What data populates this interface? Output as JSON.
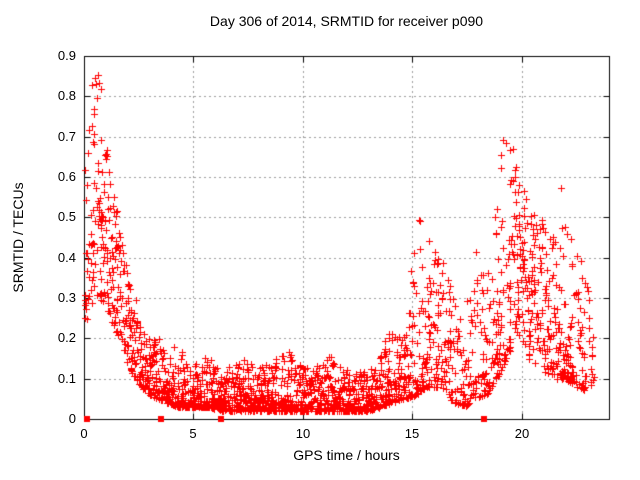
{
  "chart_data": {
    "type": "scatter",
    "title": "Day 306 of 2014, SRMTID for receiver p090",
    "xlabel": "GPS time / hours",
    "ylabel": "SRMTID / TECUs",
    "xlim": [
      0,
      24
    ],
    "ylim": [
      0,
      0.9
    ],
    "xticks": {
      "values": [
        0,
        5,
        10,
        15,
        20
      ],
      "labels": [
        "0",
        "5",
        "10",
        "15",
        "20"
      ]
    },
    "yticks": {
      "values": [
        0,
        0.1,
        0.2,
        0.3,
        0.4,
        0.5,
        0.6,
        0.7,
        0.8,
        0.9
      ],
      "labels": [
        "0",
        "0.1",
        "0.2",
        "0.3",
        "0.4",
        "0.5",
        "0.6",
        "0.7",
        "0.8",
        "0.9"
      ]
    },
    "grid": true,
    "grid_color": "#9e9e9e",
    "border_color": "#000000",
    "marker_color": "#ff0000",
    "series": [
      {
        "name": "srmtid-scatter",
        "marker": "plus",
        "seed": 306,
        "note": "dense scatter cloud described by envelope anchors read off the plot: x=hour, min/typ/max = SRMTID TECU envelope, rate = points per hour",
        "envelope": [
          {
            "x": 0.0,
            "min": 0.18,
            "typ": 0.42,
            "max": 0.65,
            "rate": 40
          },
          {
            "x": 0.3,
            "min": 0.28,
            "typ": 0.55,
            "max": 0.88,
            "rate": 95
          },
          {
            "x": 0.7,
            "min": 0.3,
            "typ": 0.55,
            "max": 0.88,
            "rate": 110
          },
          {
            "x": 1.0,
            "min": 0.28,
            "typ": 0.45,
            "max": 0.7,
            "rate": 110
          },
          {
            "x": 1.4,
            "min": 0.22,
            "typ": 0.36,
            "max": 0.55,
            "rate": 100
          },
          {
            "x": 1.8,
            "min": 0.16,
            "typ": 0.28,
            "max": 0.42,
            "rate": 100
          },
          {
            "x": 2.2,
            "min": 0.11,
            "typ": 0.2,
            "max": 0.33,
            "rate": 100
          },
          {
            "x": 2.6,
            "min": 0.08,
            "typ": 0.15,
            "max": 0.26,
            "rate": 100
          },
          {
            "x": 3.0,
            "min": 0.06,
            "typ": 0.11,
            "max": 0.2,
            "rate": 100
          },
          {
            "x": 3.4,
            "min": 0.05,
            "typ": 0.1,
            "max": 0.22,
            "rate": 110
          },
          {
            "x": 3.8,
            "min": 0.04,
            "typ": 0.08,
            "max": 0.14,
            "rate": 110
          },
          {
            "x": 4.3,
            "min": 0.03,
            "typ": 0.07,
            "max": 0.2,
            "rate": 110
          },
          {
            "x": 4.8,
            "min": 0.03,
            "typ": 0.06,
            "max": 0.12,
            "rate": 110
          },
          {
            "x": 5.6,
            "min": 0.03,
            "typ": 0.06,
            "max": 0.17,
            "rate": 110
          },
          {
            "x": 6.3,
            "min": 0.02,
            "typ": 0.05,
            "max": 0.12,
            "rate": 110
          },
          {
            "x": 7.3,
            "min": 0.02,
            "typ": 0.06,
            "max": 0.15,
            "rate": 110
          },
          {
            "x": 8.2,
            "min": 0.02,
            "typ": 0.06,
            "max": 0.13,
            "rate": 110
          },
          {
            "x": 9.4,
            "min": 0.02,
            "typ": 0.06,
            "max": 0.17,
            "rate": 110
          },
          {
            "x": 10.4,
            "min": 0.02,
            "typ": 0.06,
            "max": 0.12,
            "rate": 110
          },
          {
            "x": 11.2,
            "min": 0.02,
            "typ": 0.06,
            "max": 0.16,
            "rate": 110
          },
          {
            "x": 12.1,
            "min": 0.02,
            "typ": 0.05,
            "max": 0.12,
            "rate": 110
          },
          {
            "x": 13.0,
            "min": 0.02,
            "typ": 0.05,
            "max": 0.12,
            "rate": 110
          },
          {
            "x": 13.6,
            "min": 0.03,
            "typ": 0.07,
            "max": 0.16,
            "rate": 110
          },
          {
            "x": 14.1,
            "min": 0.04,
            "typ": 0.1,
            "max": 0.25,
            "rate": 100
          },
          {
            "x": 14.7,
            "min": 0.05,
            "typ": 0.12,
            "max": 0.22,
            "rate": 90
          },
          {
            "x": 15.2,
            "min": 0.06,
            "typ": 0.18,
            "max": 0.52,
            "rate": 90
          },
          {
            "x": 15.7,
            "min": 0.08,
            "typ": 0.2,
            "max": 0.45,
            "rate": 90
          },
          {
            "x": 16.3,
            "min": 0.08,
            "typ": 0.2,
            "max": 0.42,
            "rate": 90
          },
          {
            "x": 16.9,
            "min": 0.04,
            "typ": 0.13,
            "max": 0.3,
            "rate": 80
          },
          {
            "x": 17.4,
            "min": 0.03,
            "typ": 0.1,
            "max": 0.26,
            "rate": 70
          },
          {
            "x": 17.9,
            "min": 0.05,
            "typ": 0.17,
            "max": 0.42,
            "rate": 70
          },
          {
            "x": 18.4,
            "min": 0.06,
            "typ": 0.16,
            "max": 0.35,
            "rate": 80
          },
          {
            "x": 18.9,
            "min": 0.1,
            "typ": 0.28,
            "max": 0.55,
            "rate": 90
          },
          {
            "x": 19.3,
            "min": 0.15,
            "typ": 0.38,
            "max": 0.78,
            "rate": 95
          },
          {
            "x": 19.8,
            "min": 0.2,
            "typ": 0.4,
            "max": 0.62,
            "rate": 100
          },
          {
            "x": 20.3,
            "min": 0.15,
            "typ": 0.33,
            "max": 0.55,
            "rate": 100
          },
          {
            "x": 20.9,
            "min": 0.12,
            "typ": 0.28,
            "max": 0.5,
            "rate": 100
          },
          {
            "x": 21.5,
            "min": 0.1,
            "typ": 0.24,
            "max": 0.45,
            "rate": 90
          },
          {
            "x": 22.0,
            "min": 0.1,
            "typ": 0.28,
            "max": 0.69,
            "rate": 90
          },
          {
            "x": 22.5,
            "min": 0.08,
            "typ": 0.2,
            "max": 0.44,
            "rate": 80
          },
          {
            "x": 23.0,
            "min": 0.07,
            "typ": 0.16,
            "max": 0.33,
            "rate": 60
          },
          {
            "x": 23.35,
            "min": 0.1,
            "typ": 0.18,
            "max": 0.3,
            "rate": 30
          }
        ]
      },
      {
        "name": "axis-flag-squares",
        "marker": "filled-square",
        "x": [
          0.15,
          3.52,
          6.25,
          18.3
        ],
        "y": [
          0,
          0,
          0,
          0
        ]
      }
    ]
  }
}
